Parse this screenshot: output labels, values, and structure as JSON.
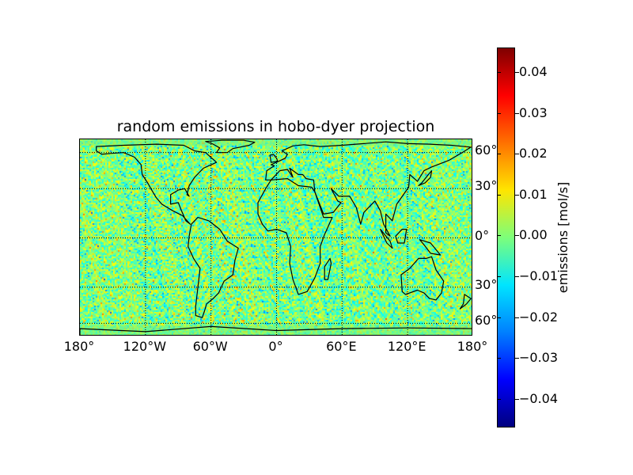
{
  "title": "random emissions in hobo-dyer projection",
  "map": {
    "projection": "hobo-dyer",
    "field": "random",
    "graticule": "dotted",
    "coastline_color": "#000000",
    "x_ticks": [
      "180°",
      "120°W",
      "60°W",
      "0°",
      "60°E",
      "120°E",
      "180°"
    ],
    "y_ticks": [
      "60°",
      "30°",
      "0°",
      "30°",
      "60°"
    ]
  },
  "colorbar": {
    "colormap": "jet",
    "label": "emissions [mol/s]",
    "range": [
      -0.047,
      0.046
    ],
    "ticks": [
      "0.04",
      "0.03",
      "0.02",
      "0.01",
      "0.00",
      "−0.01",
      "−0.02",
      "−0.03",
      "−0.04"
    ],
    "tick_values": [
      0.04,
      0.03,
      0.02,
      0.01,
      0.0,
      -0.01,
      -0.02,
      -0.03,
      -0.04
    ]
  }
}
